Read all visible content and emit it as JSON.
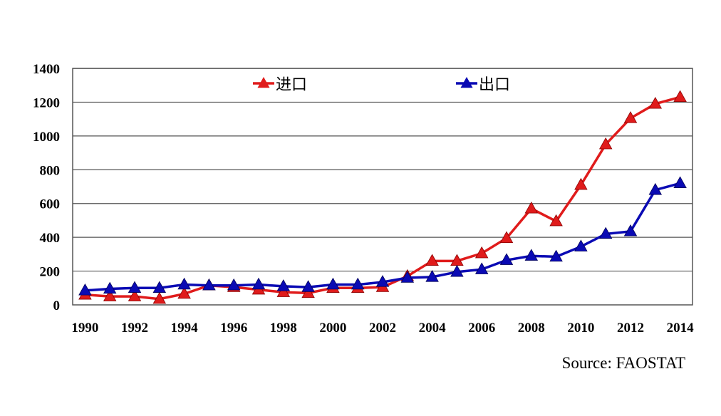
{
  "chart_data": {
    "type": "line",
    "title": "",
    "xlabel": "",
    "ylabel": "",
    "x": [
      1990,
      1991,
      1992,
      1993,
      1994,
      1995,
      1996,
      1997,
      1998,
      1999,
      2000,
      2001,
      2002,
      2003,
      2004,
      2005,
      2006,
      2007,
      2008,
      2009,
      2010,
      2011,
      2012,
      2013,
      2014
    ],
    "x_tick_labels": [
      "1990",
      "1992",
      "1994",
      "1996",
      "1998",
      "2000",
      "2002",
      "2004",
      "2006",
      "2008",
      "2010",
      "2012",
      "2014"
    ],
    "y_tick_labels": [
      "0",
      "200",
      "400",
      "600",
      "800",
      "1000",
      "1200",
      "1400"
    ],
    "ylim": [
      0,
      1400
    ],
    "grid": "horizontal",
    "legend_position": "top",
    "series": [
      {
        "name": "进口",
        "color": "#e01b1b",
        "marker": "triangle",
        "values": [
          60,
          50,
          50,
          35,
          65,
          115,
          105,
          90,
          75,
          70,
          100,
          100,
          105,
          170,
          260,
          260,
          305,
          395,
          570,
          495,
          710,
          950,
          1105,
          1190,
          1230
        ]
      },
      {
        "name": "出口",
        "color": "#0a0ab4",
        "marker": "triangle",
        "values": [
          85,
          95,
          100,
          100,
          120,
          115,
          115,
          120,
          110,
          105,
          120,
          120,
          135,
          160,
          165,
          195,
          210,
          265,
          290,
          285,
          345,
          420,
          435,
          680,
          720
        ]
      }
    ],
    "source": "Source: FAOSTAT"
  }
}
